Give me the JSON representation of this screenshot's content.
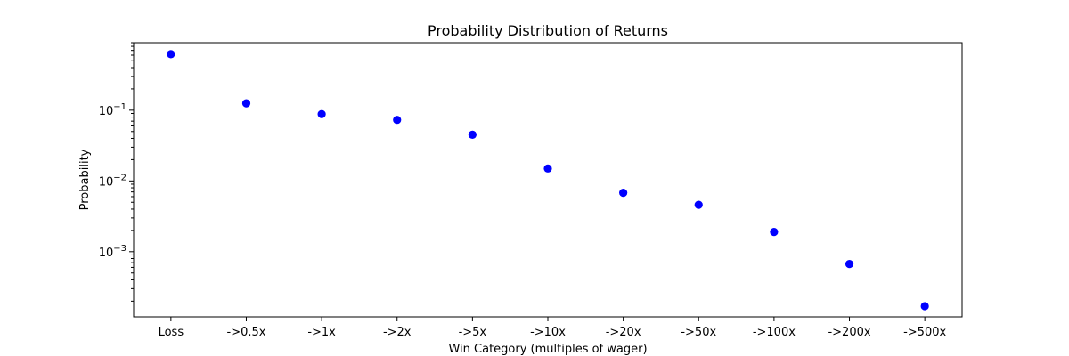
{
  "chart_data": {
    "type": "scatter",
    "title": "Probability Distribution of Returns",
    "xlabel": "Win Category (multiples of wager)",
    "ylabel": "Probability",
    "categories": [
      "Loss",
      "->0.5x",
      "->1x",
      "->2x",
      "->5x",
      "->10x",
      "->20x",
      "->50x",
      "->100x",
      "->200x",
      "->500x"
    ],
    "values": [
      0.62,
      0.125,
      0.088,
      0.073,
      0.045,
      0.015,
      0.0068,
      0.0046,
      0.0019,
      0.00067,
      0.00017
    ],
    "yscale": "log",
    "ylim": [
      0.00012,
      0.9
    ],
    "y_major_ticks": [
      0.001,
      0.01,
      0.1
    ],
    "y_tick_labels": [
      {
        "base": "10",
        "exp": "−3"
      },
      {
        "base": "10",
        "exp": "−2"
      },
      {
        "base": "10",
        "exp": "−1"
      }
    ],
    "marker_color": "#0000ff",
    "grid": false,
    "legend": "none"
  }
}
